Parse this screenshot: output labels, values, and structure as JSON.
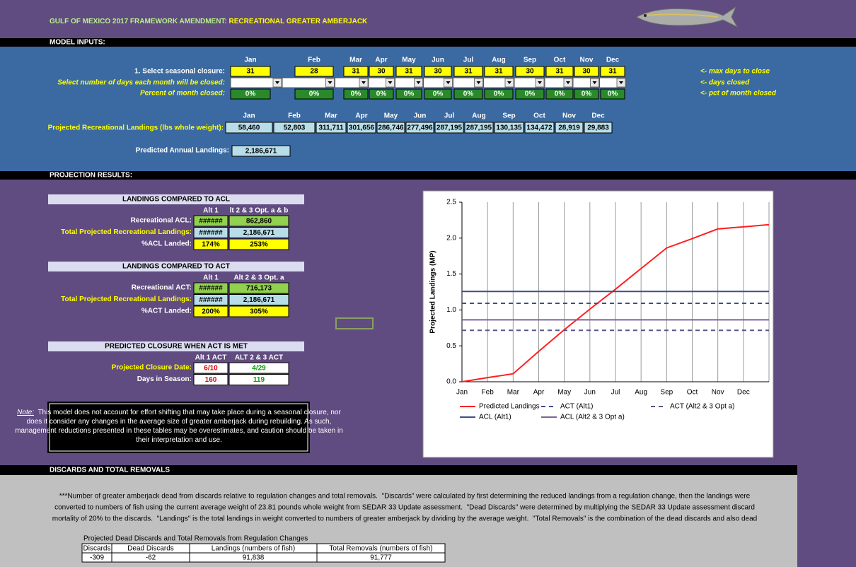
{
  "header": {
    "title_part1": "GULF OF MEXICO 2017 FRAMEWORK AMENDMENT: ",
    "title_part2": "RECREATIONAL GREATER AMBERJACK"
  },
  "model_inputs": {
    "section_title": "MODEL INPUTS:",
    "months": [
      "Jan",
      "Feb",
      "Mar",
      "Apr",
      "May",
      "Jun",
      "Jul",
      "Aug",
      "Sep",
      "Oct",
      "Nov",
      "Dec"
    ],
    "closure_label": "1. Select seasonal closure:",
    "max_days": [
      "31",
      "28",
      "31",
      "30",
      "31",
      "30",
      "31",
      "31",
      "30",
      "31",
      "30",
      "31"
    ],
    "days_label": "Select number of days each month will be closed:",
    "pct_label": "Percent of month closed:",
    "pct_closed": [
      "0%",
      "0%",
      "0%",
      "0%",
      "0%",
      "0%",
      "0%",
      "0%",
      "0%",
      "0%",
      "0%",
      "0%"
    ],
    "hints": [
      "<- max days to close",
      "<- days closed",
      "<- pct of month closed"
    ],
    "landings_label": "Projected Recreational Landings (lbs whole weight):",
    "landings": [
      "58,460",
      "52,803",
      "311,711",
      "301,656",
      "286,746",
      "277,496",
      "287,195",
      "287,195",
      "130,135",
      "134,472",
      "28,919",
      "29,883"
    ],
    "annual_label": "Predicted Annual Landings:",
    "annual": "2,186,671"
  },
  "projection_results": {
    "section_title": "PROJECTION RESULTS:",
    "tables": [
      {
        "title": "LANDINGS COMPARED TO ACL",
        "columns": [
          "Alt 1",
          "lt 2 & 3 Opt. a & b"
        ],
        "rows": [
          {
            "label": "Recreational ACL:",
            "cells": [
              "######",
              "862,860"
            ]
          },
          {
            "label": "Total Projected Recreational Landings:",
            "cells": [
              "######",
              "2,186,671"
            ]
          },
          {
            "label": "%ACL Landed:",
            "cells": [
              "174%",
              "253%"
            ]
          }
        ]
      },
      {
        "title": "LANDINGS COMPARED TO ACT",
        "columns": [
          "Alt 1",
          "Alt 2 & 3 Opt. a"
        ],
        "rows": [
          {
            "label": "Recreational ACT:",
            "cells": [
              "######",
              "716,173"
            ]
          },
          {
            "label": "Total Projected Recreational Landings:",
            "cells": [
              "######",
              "2,186,671"
            ]
          },
          {
            "label": "%ACT Landed:",
            "cells": [
              "200%",
              "305%"
            ]
          }
        ]
      },
      {
        "title": "PREDICTED CLOSURE WHEN ACT IS MET",
        "columns": [
          "Alt 1 ACT",
          "ALT 2 & 3 ACT"
        ],
        "rows": [
          {
            "label": "Projected Closure Date:",
            "cells": [
              "6/10",
              "4/29"
            ]
          },
          {
            "label": "Days in Season:",
            "cells": [
              "160",
              "119"
            ]
          }
        ]
      }
    ],
    "note": {
      "lead": "Note:",
      "lines": [
        "  This model does not account for effort shifting that may take place during a seasonal closure, nor",
        "does it consider any changes in the average size of greater amberjack during rebuilding. As such,",
        "management reductions presented in these tables may be overestimates, and caution should be taken in",
        "their interpretation and use."
      ]
    }
  },
  "chart_data": {
    "type": "line",
    "y_label": "Projected Landings (MP)",
    "categories": [
      "Jan",
      "Feb",
      "Mar",
      "Apr",
      "May",
      "Jun",
      "Jul",
      "Aug",
      "Sep",
      "Oct",
      "Nov",
      "Dec",
      null
    ],
    "ylim": [
      0,
      2.5
    ],
    "yticks": [
      {
        "value": 0,
        "label": "0.0"
      },
      {
        "value": 0.5,
        "label": "0.5"
      },
      {
        "value": 1,
        "label": "1.0"
      },
      {
        "value": 1.5,
        "label": "1.5"
      },
      {
        "value": 2,
        "label": "2.0"
      },
      {
        "value": 2.5,
        "label": "2.5"
      }
    ],
    "grid": "vertical",
    "legend": "bottom",
    "series": [
      {
        "name": "Predicted Landings",
        "color": "#ff2020",
        "dashed": false,
        "values": [
          0,
          0.058,
          0.111,
          0.423,
          0.725,
          1.011,
          1.289,
          1.576,
          1.863,
          1.993,
          2.128,
          2.157,
          2.187
        ]
      },
      {
        "name": "ACT (Alt1)",
        "color": "#3b4f8c",
        "dashed": true,
        "values": [
          1.093,
          1.093,
          1.093,
          1.093,
          1.093,
          1.093,
          1.093,
          1.093,
          1.093,
          1.093,
          1.093,
          1.093,
          1.093
        ]
      },
      {
        "name": "ACT (Alt2 & 3 Opt a)",
        "color": "#5a5488",
        "dashed": true,
        "values": [
          0.716,
          0.716,
          0.716,
          0.716,
          0.716,
          0.716,
          0.716,
          0.716,
          0.716,
          0.716,
          0.716,
          0.716,
          0.716
        ]
      },
      {
        "name": "ACL (Alt1)",
        "color": "#3b4f8c",
        "dashed": false,
        "values": [
          1.257,
          1.257,
          1.257,
          1.257,
          1.257,
          1.257,
          1.257,
          1.257,
          1.257,
          1.257,
          1.257,
          1.257,
          1.257
        ]
      },
      {
        "name": "ACL (Alt2 & 3 Opt a)",
        "color": "#7b6499",
        "dashed": false,
        "values": [
          0.863,
          0.863,
          0.863,
          0.863,
          0.863,
          0.863,
          0.863,
          0.863,
          0.863,
          0.863,
          0.863,
          0.863,
          0.863
        ]
      }
    ]
  },
  "discards": {
    "section_title": "DISCARDS AND TOTAL REMOVALS",
    "paragraph": [
      "***Number of greater amberjack dead from discards relative to regulation changes and total removals.  \"Discards\" were calculated by first determining the reduced landings from a regulation change, then the landings were",
      "converted to numbers of fish using the current average weight of 23.81 pounds whole weight from SEDAR 33 Update assessment.  \"Dead Discards\" were determined by multiplying the SEDAR 33 Update assessment discard",
      "mortality of 20% to the discards.  \"Landings\" is the total landings in weight converted to numbers of greater amberjack by dividing by the average weight.  \"Total Removals\" is the combination of the dead discards and also dead"
    ],
    "table_caption": "Projected Dead Discards and Total Removals from Regulation Changes",
    "table": {
      "header": [
        "Discards",
        "Dead Discards",
        "Landings (numbers of fish)",
        "Total Removals (numbers of fish)"
      ],
      "rows": [
        [
          "-309",
          "-62",
          "91,838",
          "91,777"
        ]
      ]
    }
  }
}
